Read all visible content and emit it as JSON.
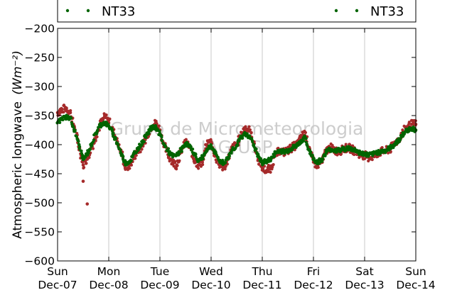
{
  "chart_data": {
    "type": "scatter",
    "ylabel": "Atmospheric longwave",
    "ylabel_unit": "(Wm⁻²)",
    "ylim": [
      -600,
      -200
    ],
    "yticks": [
      -200,
      -250,
      -300,
      -350,
      -400,
      -450,
      -500,
      -550,
      -600
    ],
    "xlim": [
      0,
      7
    ],
    "xtick_labels": [
      {
        "day": "Sun",
        "date": "Dec-07"
      },
      {
        "day": "Mon",
        "date": "Dec-08"
      },
      {
        "day": "Tue",
        "date": "Dec-09"
      },
      {
        "day": "Wed",
        "date": "Dec-10"
      },
      {
        "day": "Thu",
        "date": "Dec-11"
      },
      {
        "day": "Fri",
        "date": "Dec-12"
      },
      {
        "day": "Sat",
        "date": "Dec-13"
      },
      {
        "day": "Sun",
        "date": "Dec-14"
      }
    ],
    "grid": "vertical",
    "legend": {
      "placement": "top",
      "entries": [
        "NT33",
        "NT33"
      ]
    },
    "watermark": [
      "Grupo de Micrometeorologia",
      "IAG/USP"
    ],
    "series": [
      {
        "name": "NT33",
        "color": "#a52a2a",
        "x": [
          0.0,
          0.08,
          0.17,
          0.25,
          0.33,
          0.42,
          0.5,
          0.58,
          0.67,
          0.75,
          0.83,
          0.92,
          1.0,
          1.08,
          1.17,
          1.25,
          1.33,
          1.42,
          1.5,
          1.58,
          1.67,
          1.75,
          1.83,
          1.92,
          2.0,
          2.08,
          2.17,
          2.25,
          2.33,
          2.42,
          2.5,
          2.58,
          2.67,
          2.75,
          2.83,
          2.92,
          3.0,
          3.08,
          3.17,
          3.25,
          3.33,
          3.42,
          3.5,
          3.58,
          3.67,
          3.75,
          3.83,
          3.92,
          4.0,
          4.08,
          4.17,
          4.25,
          4.33,
          4.42,
          4.5,
          4.58,
          4.67,
          4.75,
          4.83,
          4.92,
          5.0,
          5.08,
          5.17,
          5.25,
          5.33,
          5.42,
          5.5,
          5.58,
          5.67,
          5.75,
          5.83,
          5.92,
          6.0,
          6.08,
          6.17,
          6.25,
          6.33,
          6.42,
          6.5,
          6.58,
          6.67,
          6.75,
          6.83,
          6.92,
          7.0
        ],
        "values": [
          -345,
          -340,
          -337,
          -345,
          -370,
          -405,
          -435,
          -425,
          -405,
          -385,
          -365,
          -352,
          -358,
          -375,
          -395,
          -415,
          -440,
          -435,
          -420,
          -410,
          -400,
          -385,
          -370,
          -362,
          -375,
          -400,
          -420,
          -430,
          -435,
          -410,
          -395,
          -405,
          -425,
          -435,
          -430,
          -400,
          -395,
          -420,
          -435,
          -440,
          -425,
          -405,
          -400,
          -385,
          -370,
          -375,
          -395,
          -425,
          -440,
          -445,
          -440,
          -420,
          -410,
          -413,
          -410,
          -405,
          -400,
          -390,
          -378,
          -405,
          -430,
          -435,
          -430,
          -410,
          -405,
          -410,
          -412,
          -408,
          -405,
          -408,
          -412,
          -418,
          -418,
          -422,
          -420,
          -415,
          -412,
          -410,
          -408,
          -398,
          -390,
          -378,
          -370,
          -365,
          -365
        ]
      },
      {
        "name": "NT33",
        "color": "#006400",
        "x": [
          0.0,
          0.08,
          0.17,
          0.25,
          0.33,
          0.42,
          0.5,
          0.58,
          0.67,
          0.75,
          0.83,
          0.92,
          1.0,
          1.08,
          1.17,
          1.25,
          1.33,
          1.42,
          1.5,
          1.58,
          1.67,
          1.75,
          1.83,
          1.92,
          2.0,
          2.08,
          2.17,
          2.25,
          2.33,
          2.42,
          2.5,
          2.58,
          2.67,
          2.75,
          2.83,
          2.92,
          3.0,
          3.08,
          3.17,
          3.25,
          3.33,
          3.42,
          3.5,
          3.58,
          3.67,
          3.75,
          3.83,
          3.92,
          4.0,
          4.08,
          4.17,
          4.25,
          4.33,
          4.42,
          4.5,
          4.58,
          4.67,
          4.75,
          4.83,
          4.92,
          5.0,
          5.08,
          5.17,
          5.25,
          5.33,
          5.42,
          5.5,
          5.58,
          5.67,
          5.75,
          5.83,
          5.92,
          6.0,
          6.08,
          6.17,
          6.25,
          6.33,
          6.42,
          6.5,
          6.58,
          6.67,
          6.75,
          6.83,
          6.92,
          7.0
        ],
        "values": [
          -362,
          -356,
          -352,
          -355,
          -375,
          -400,
          -425,
          -415,
          -398,
          -380,
          -367,
          -362,
          -368,
          -380,
          -398,
          -418,
          -432,
          -428,
          -415,
          -405,
          -395,
          -380,
          -372,
          -370,
          -382,
          -400,
          -412,
          -420,
          -418,
          -408,
          -398,
          -403,
          -415,
          -428,
          -422,
          -408,
          -402,
          -415,
          -428,
          -432,
          -422,
          -408,
          -402,
          -388,
          -382,
          -385,
          -400,
          -420,
          -432,
          -428,
          -425,
          -415,
          -410,
          -412,
          -410,
          -406,
          -402,
          -395,
          -388,
          -410,
          -425,
          -430,
          -425,
          -412,
          -408,
          -410,
          -410,
          -408,
          -406,
          -408,
          -410,
          -415,
          -416,
          -418,
          -416,
          -413,
          -412,
          -410,
          -405,
          -400,
          -392,
          -383,
          -375,
          -372,
          -375
        ]
      }
    ],
    "outliers": {
      "series_index": 0,
      "x": [
        0.58,
        0.5
      ],
      "values": [
        -502,
        -463
      ]
    }
  }
}
